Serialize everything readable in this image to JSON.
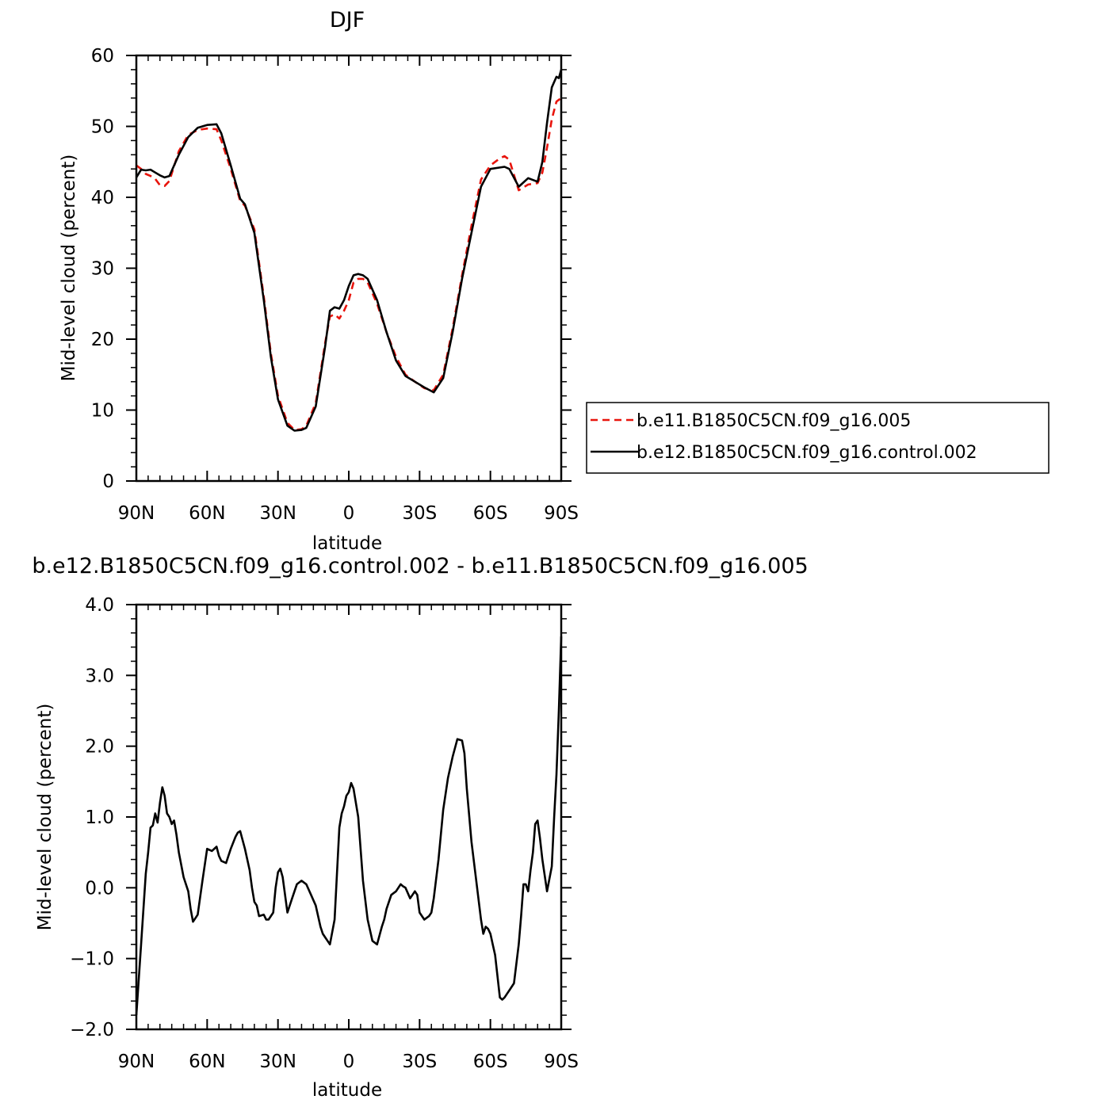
{
  "chart_data": [
    {
      "type": "line",
      "title": "DJF",
      "xlabel": "latitude",
      "ylabel": "Mid-level cloud (percent)",
      "x_ticks": [
        {
          "value": -90,
          "label": "90N"
        },
        {
          "value": -60,
          "label": "60N"
        },
        {
          "value": -30,
          "label": "30N"
        },
        {
          "value": 0,
          "label": "0"
        },
        {
          "value": 30,
          "label": "30S"
        },
        {
          "value": 60,
          "label": "60S"
        },
        {
          "value": 90,
          "label": "90S"
        }
      ],
      "y_ticks": [
        {
          "value": 0,
          "label": "0"
        },
        {
          "value": 10,
          "label": "10"
        },
        {
          "value": 20,
          "label": "20"
        },
        {
          "value": 30,
          "label": "30"
        },
        {
          "value": 40,
          "label": "40"
        },
        {
          "value": 50,
          "label": "50"
        },
        {
          "value": 60,
          "label": "60"
        }
      ],
      "xlim": [
        -90,
        90
      ],
      "ylim": [
        0,
        60
      ],
      "grid": false,
      "legend_position": "right",
      "series": [
        {
          "name": "b.e11.B1850C5CN.f09_g16.005",
          "color": "#e8140c",
          "dash": "dashed",
          "x": [
            -90,
            -88,
            -86,
            -84,
            -82,
            -80,
            -78,
            -76,
            -72,
            -68,
            -64,
            -60,
            -56,
            -54,
            -50,
            -46,
            -44,
            -40,
            -36,
            -33,
            -30,
            -26,
            -23,
            -20,
            -18,
            -14,
            -10,
            -8,
            -6,
            -4,
            -2,
            0,
            2,
            4,
            6,
            8,
            12,
            16,
            20,
            24,
            28,
            32,
            36,
            40,
            44,
            48,
            52,
            56,
            60,
            64,
            66,
            68,
            72,
            76,
            80,
            82,
            84,
            86,
            88,
            90
          ],
          "y": [
            44.5,
            44.0,
            43.3,
            43.0,
            42.6,
            41.7,
            41.6,
            42.3,
            46.5,
            48.8,
            49.5,
            49.7,
            49.6,
            48.0,
            44.0,
            39.5,
            38.8,
            35.5,
            26.0,
            18.0,
            12.0,
            8.2,
            7.2,
            7.3,
            7.8,
            11.0,
            19.5,
            23.2,
            23.5,
            22.9,
            24.0,
            25.5,
            28.0,
            28.5,
            28.5,
            28.0,
            25.0,
            21.0,
            17.5,
            15.0,
            14.0,
            13.1,
            12.8,
            15.0,
            21.5,
            29.0,
            36.0,
            42.5,
            44.5,
            45.5,
            45.8,
            45.3,
            41.0,
            41.8,
            42.0,
            43.5,
            47.0,
            51.0,
            53.5,
            54.0
          ]
        },
        {
          "name": "b.e12.B1850C5CN.f09_g16.control.002",
          "color": "#000000",
          "dash": "solid",
          "x": [
            -90,
            -88,
            -86,
            -84,
            -82,
            -80,
            -78,
            -76,
            -72,
            -68,
            -64,
            -60,
            -56,
            -54,
            -50,
            -46,
            -44,
            -40,
            -36,
            -33,
            -30,
            -26,
            -23,
            -20,
            -18,
            -14,
            -10,
            -8,
            -6,
            -4,
            -2,
            0,
            2,
            4,
            6,
            8,
            12,
            16,
            20,
            24,
            28,
            32,
            36,
            40,
            44,
            48,
            52,
            56,
            60,
            64,
            66,
            68,
            72,
            76,
            80,
            82,
            84,
            86,
            88,
            89,
            90
          ],
          "y": [
            42.8,
            43.9,
            43.8,
            43.9,
            43.5,
            43.1,
            42.8,
            43.0,
            46.0,
            48.5,
            49.8,
            50.2,
            50.3,
            49.0,
            44.5,
            39.8,
            39.0,
            35.0,
            25.5,
            17.5,
            11.5,
            7.8,
            7.1,
            7.2,
            7.5,
            10.5,
            19.0,
            24.0,
            24.5,
            24.3,
            25.5,
            27.5,
            29.0,
            29.2,
            29.0,
            28.5,
            25.5,
            21.0,
            17.0,
            14.8,
            14.0,
            13.2,
            12.5,
            14.5,
            21.0,
            28.5,
            35.0,
            41.5,
            44.0,
            44.2,
            44.3,
            44.0,
            41.5,
            42.7,
            42.2,
            45.0,
            50.5,
            55.5,
            57.0,
            56.8,
            58.0
          ]
        }
      ]
    },
    {
      "type": "line",
      "title": "b.e12.B1850C5CN.f09_g16.control.002 - b.e11.B1850C5CN.f09_g16.005",
      "xlabel": "latitude",
      "ylabel": "Mid-level cloud (percent)",
      "x_ticks": [
        {
          "value": -90,
          "label": "90N"
        },
        {
          "value": -60,
          "label": "60N"
        },
        {
          "value": -30,
          "label": "30N"
        },
        {
          "value": 0,
          "label": "0"
        },
        {
          "value": 30,
          "label": "30S"
        },
        {
          "value": 60,
          "label": "60S"
        },
        {
          "value": 90,
          "label": "90S"
        }
      ],
      "y_ticks": [
        {
          "value": -2,
          "label": "−2.0"
        },
        {
          "value": -1,
          "label": "−1.0"
        },
        {
          "value": 0,
          "label": "0.0"
        },
        {
          "value": 1,
          "label": "1.0"
        },
        {
          "value": 2,
          "label": "2.0"
        },
        {
          "value": 3,
          "label": "3.0"
        },
        {
          "value": 4,
          "label": "4.0"
        }
      ],
      "xlim": [
        -90,
        90
      ],
      "ylim": [
        -2,
        4
      ],
      "grid": false,
      "series": [
        {
          "color": "#000000",
          "dash": "solid",
          "x": [
            -90,
            -88,
            -86,
            -85,
            -84,
            -83,
            -82,
            -81,
            -80,
            -79,
            -78,
            -77,
            -76,
            -75,
            -74,
            -73,
            -72,
            -70,
            -68,
            -67,
            -66,
            -64,
            -62,
            -60,
            -58,
            -56,
            -55,
            -54,
            -52,
            -50,
            -48,
            -47,
            -46,
            -44,
            -42,
            -41,
            -40,
            -39,
            -38,
            -36,
            -35,
            -34,
            -32,
            -31,
            -30,
            -29,
            -28,
            -26,
            -24,
            -22,
            -20,
            -18,
            -16,
            -14,
            -12,
            -11,
            -10,
            -9,
            -8,
            -6,
            -4,
            -3,
            -2,
            -1,
            0,
            1,
            2,
            4,
            6,
            8,
            10,
            12,
            14,
            15,
            16,
            17,
            18,
            20,
            22,
            23,
            24,
            26,
            28,
            29,
            30,
            32,
            34,
            35,
            36,
            38,
            40,
            42,
            44,
            46,
            48,
            49,
            50,
            52,
            54,
            56,
            57,
            58,
            59,
            60,
            61,
            62,
            63,
            64,
            65,
            66,
            67,
            68,
            70,
            72,
            73,
            74,
            75,
            76,
            77,
            78,
            79,
            80,
            81,
            82,
            84,
            86,
            87,
            88,
            89,
            90
          ],
          "y": [
            -1.8,
            -0.8,
            0.2,
            0.5,
            0.85,
            0.88,
            1.05,
            0.92,
            1.2,
            1.42,
            1.3,
            1.05,
            1.0,
            0.9,
            0.95,
            0.75,
            0.5,
            0.15,
            -0.05,
            -0.3,
            -0.48,
            -0.38,
            0.1,
            0.55,
            0.52,
            0.58,
            0.45,
            0.38,
            0.35,
            0.55,
            0.72,
            0.78,
            0.8,
            0.55,
            0.25,
            0.0,
            -0.2,
            -0.25,
            -0.4,
            -0.38,
            -0.45,
            -0.45,
            -0.35,
            0.0,
            0.22,
            0.27,
            0.15,
            -0.35,
            -0.15,
            0.05,
            0.1,
            0.05,
            -0.1,
            -0.25,
            -0.55,
            -0.65,
            -0.7,
            -0.75,
            -0.8,
            -0.45,
            0.85,
            1.05,
            1.15,
            1.3,
            1.35,
            1.48,
            1.4,
            1.0,
            0.1,
            -0.45,
            -0.75,
            -0.8,
            -0.55,
            -0.45,
            -0.3,
            -0.2,
            -0.1,
            -0.05,
            0.05,
            0.02,
            0.0,
            -0.15,
            -0.05,
            -0.1,
            -0.35,
            -0.45,
            -0.4,
            -0.35,
            -0.15,
            0.4,
            1.1,
            1.55,
            1.85,
            2.1,
            2.08,
            1.9,
            1.4,
            0.65,
            0.1,
            -0.45,
            -0.65,
            -0.55,
            -0.58,
            -0.65,
            -0.8,
            -0.95,
            -1.25,
            -1.55,
            -1.58,
            -1.55,
            -1.5,
            -1.45,
            -1.35,
            -0.8,
            -0.4,
            0.05,
            0.05,
            -0.05,
            0.25,
            0.5,
            0.9,
            0.95,
            0.7,
            0.4,
            -0.05,
            0.3,
            1.0,
            1.6,
            2.5,
            3.55
          ]
        }
      ]
    }
  ]
}
